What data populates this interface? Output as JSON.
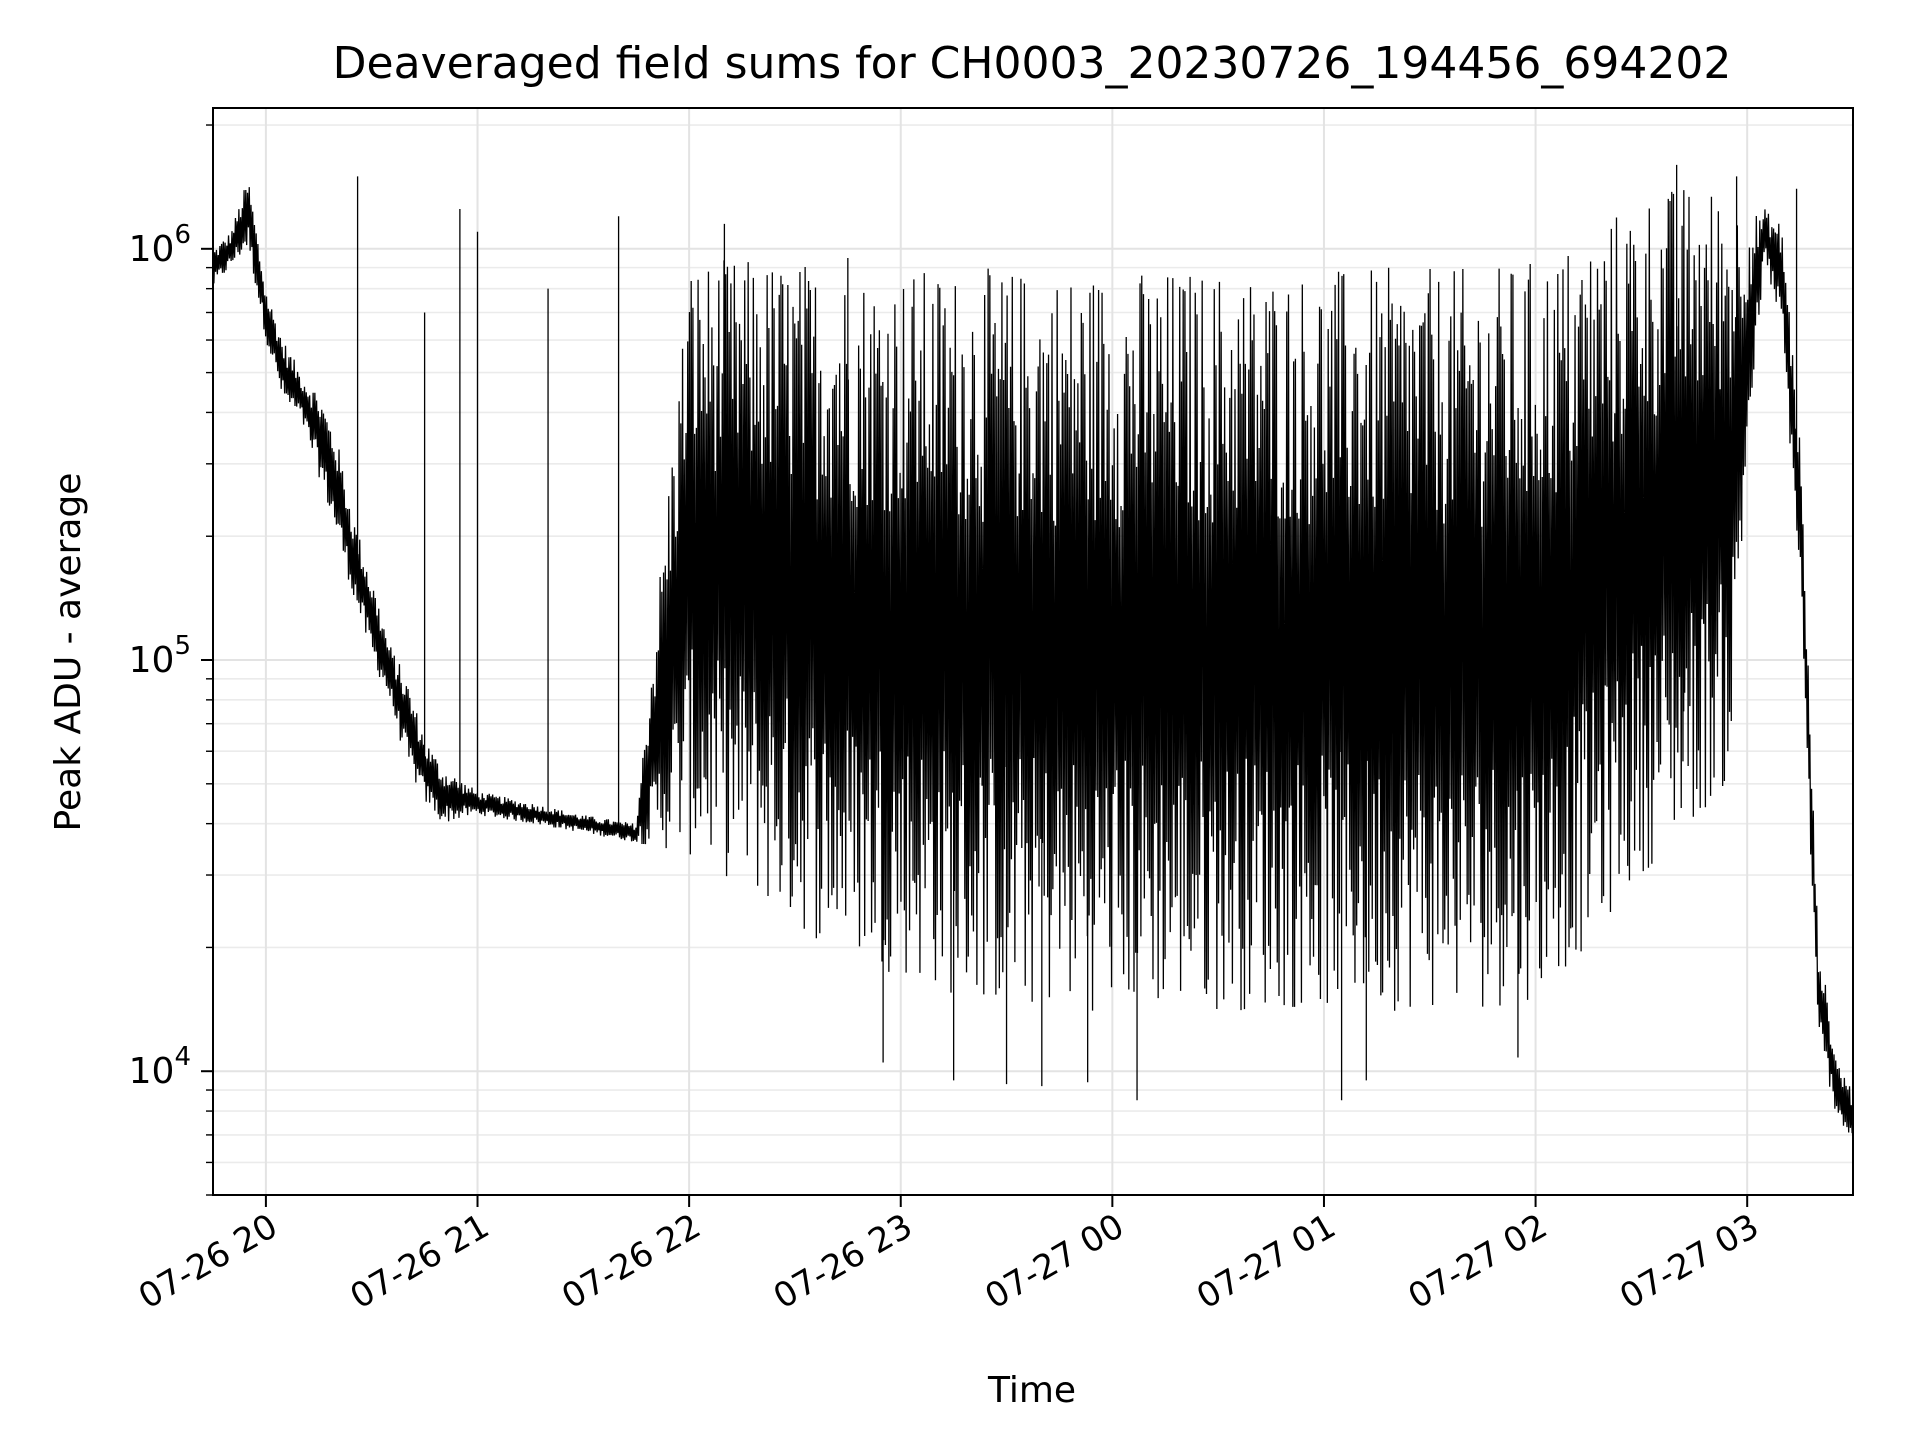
{
  "chart_data": {
    "type": "line",
    "title": "Deaveraged field sums for CH0003_20230726_194456_694202",
    "xlabel": "Time",
    "ylabel": "Peak ADU - average",
    "yscale": "log",
    "ylim": [
      5000,
      2200000
    ],
    "xlim": [
      "2023-07-26 19:45",
      "2023-07-27 03:30"
    ],
    "grid": true,
    "y_ticks": [
      {
        "value": 10000,
        "base": "10",
        "exp": "4"
      },
      {
        "value": 100000,
        "base": "10",
        "exp": "5"
      },
      {
        "value": 1000000,
        "base": "10",
        "exp": "6"
      }
    ],
    "x_ticks": [
      {
        "value": "2023-07-26 20:00",
        "label": "07-26 20"
      },
      {
        "value": "2023-07-26 21:00",
        "label": "07-26 21"
      },
      {
        "value": "2023-07-26 22:00",
        "label": "07-26 22"
      },
      {
        "value": "2023-07-26 23:00",
        "label": "07-26 23"
      },
      {
        "value": "2023-07-27 00:00",
        "label": "07-27 00"
      },
      {
        "value": "2023-07-27 01:00",
        "label": "07-27 01"
      },
      {
        "value": "2023-07-27 02:00",
        "label": "07-27 02"
      },
      {
        "value": "2023-07-27 03:00",
        "label": "07-27 03"
      }
    ],
    "series": [
      {
        "color": "#000000",
        "envelope": {
          "x": [
            "2023-07-26 19:45",
            "2023-07-26 19:50",
            "2023-07-26 19:55",
            "2023-07-26 20:00",
            "2023-07-26 20:05",
            "2023-07-26 20:10",
            "2023-07-26 20:15",
            "2023-07-26 20:20",
            "2023-07-26 20:25",
            "2023-07-26 20:30",
            "2023-07-26 20:35",
            "2023-07-26 20:40",
            "2023-07-26 20:45",
            "2023-07-26 20:50",
            "2023-07-26 21:00",
            "2023-07-26 21:15",
            "2023-07-26 21:30",
            "2023-07-26 21:45",
            "2023-07-26 22:00",
            "2023-07-26 22:15",
            "2023-07-26 22:30",
            "2023-07-26 22:45",
            "2023-07-26 23:00",
            "2023-07-26 23:15",
            "2023-07-26 23:30",
            "2023-07-26 23:45",
            "2023-07-27 00:00",
            "2023-07-27 00:15",
            "2023-07-27 00:30",
            "2023-07-27 00:45",
            "2023-07-27 01:00",
            "2023-07-27 01:15",
            "2023-07-27 01:30",
            "2023-07-27 01:45",
            "2023-07-27 02:00",
            "2023-07-27 02:15",
            "2023-07-27 02:30",
            "2023-07-27 02:45",
            "2023-07-27 02:55",
            "2023-07-27 03:00",
            "2023-07-27 03:05",
            "2023-07-27 03:10",
            "2023-07-27 03:15",
            "2023-07-27 03:20",
            "2023-07-27 03:25",
            "2023-07-27 03:30"
          ],
          "upper": [
            1000000,
            1100000,
            1500000,
            800000,
            600000,
            500000,
            450000,
            350000,
            220000,
            160000,
            110000,
            90000,
            65000,
            55000,
            48000,
            45000,
            42000,
            40000,
            950000,
            950000,
            950000,
            900000,
            900000,
            900000,
            900000,
            900000,
            900000,
            900000,
            900000,
            900000,
            900000,
            900000,
            900000,
            900000,
            950000,
            1100000,
            1400000,
            1450000,
            1400000,
            1200000,
            1250000,
            1150000,
            350000,
            22000,
            11000,
            9000
          ],
          "lower": [
            800000,
            900000,
            1000000,
            600000,
            420000,
            380000,
            280000,
            200000,
            140000,
            100000,
            80000,
            55000,
            45000,
            40000,
            42000,
            40000,
            38000,
            36000,
            33000,
            28000,
            22000,
            19000,
            17000,
            15000,
            14000,
            14000,
            14000,
            14000,
            14000,
            14000,
            14000,
            14000,
            14000,
            14000,
            15000,
            20000,
            30000,
            40000,
            50000,
            300000,
            950000,
            600000,
            150000,
            12000,
            8000,
            6500
          ]
        },
        "spikes": [
          {
            "x": "2023-07-26 20:26",
            "value": 1500000
          },
          {
            "x": "2023-07-26 20:45",
            "value": 700000
          },
          {
            "x": "2023-07-26 20:55",
            "value": 1250000
          },
          {
            "x": "2023-07-26 21:00",
            "value": 1100000
          },
          {
            "x": "2023-07-26 21:20",
            "value": 800000
          },
          {
            "x": "2023-07-26 21:40",
            "value": 1200000
          },
          {
            "x": "2023-07-26 22:10",
            "value": 1150000
          },
          {
            "x": "2023-07-26 22:45",
            "value": 950000
          },
          {
            "x": "2023-07-27 02:40",
            "value": 1600000
          },
          {
            "x": "2023-07-27 02:57",
            "value": 1500000
          },
          {
            "x": "2023-07-27 03:14",
            "value": 1400000
          },
          {
            "x": "2023-07-26 22:55",
            "value": 10500
          },
          {
            "x": "2023-07-26 23:15",
            "value": 9500
          },
          {
            "x": "2023-07-26 23:30",
            "value": 9300
          },
          {
            "x": "2023-07-26 23:40",
            "value": 9200
          },
          {
            "x": "2023-07-26 23:53",
            "value": 9400
          },
          {
            "x": "2023-07-27 00:07",
            "value": 8500
          },
          {
            "x": "2023-07-27 01:05",
            "value": 8500
          },
          {
            "x": "2023-07-27 01:12",
            "value": 9500
          },
          {
            "x": "2023-07-27 01:55",
            "value": 10800
          },
          {
            "x": "2023-07-27 02:42",
            "value": 75000
          }
        ]
      }
    ]
  }
}
